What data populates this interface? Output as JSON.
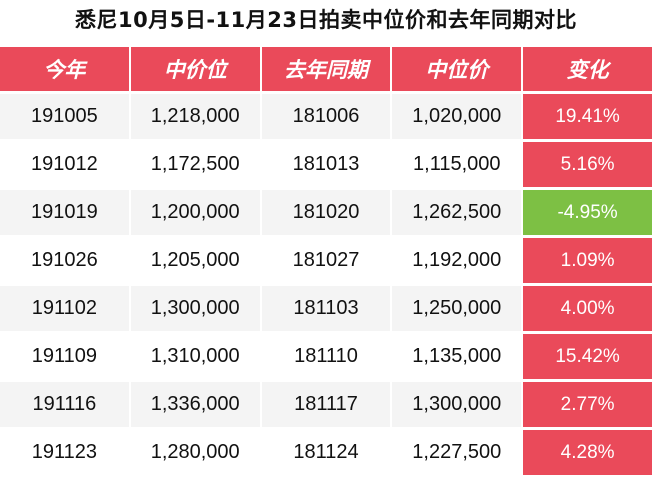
{
  "title": "悉尼10月5日-11月23日拍卖中位价和去年同期对比",
  "colors": {
    "header_bg": "#ea4a5a",
    "positive_change_bg": "#ea4a5a",
    "negative_change_bg": "#7dc044",
    "stripe_bg": "#f4f4f4"
  },
  "headers": {
    "this_year": "今年",
    "median": "中价位",
    "last_year": "去年同期",
    "last_median": "中位价",
    "change": "变化"
  },
  "rows": [
    {
      "this_year": "191005",
      "median": "1,218,000",
      "last_year": "181006",
      "last_median": "1,020,000",
      "change": "19.41%",
      "direction": "up"
    },
    {
      "this_year": "191012",
      "median": "1,172,500",
      "last_year": "181013",
      "last_median": "1,115,000",
      "change": "5.16%",
      "direction": "up"
    },
    {
      "this_year": "191019",
      "median": "1,200,000",
      "last_year": "181020",
      "last_median": "1,262,500",
      "change": "-4.95%",
      "direction": "down"
    },
    {
      "this_year": "191026",
      "median": "1,205,000",
      "last_year": "181027",
      "last_median": "1,192,000",
      "change": "1.09%",
      "direction": "up"
    },
    {
      "this_year": "191102",
      "median": "1,300,000",
      "last_year": "181103",
      "last_median": "1,250,000",
      "change": "4.00%",
      "direction": "up"
    },
    {
      "this_year": "191109",
      "median": "1,310,000",
      "last_year": "181110",
      "last_median": "1,135,000",
      "change": "15.42%",
      "direction": "up"
    },
    {
      "this_year": "191116",
      "median": "1,336,000",
      "last_year": "181117",
      "last_median": "1,300,000",
      "change": "2.77%",
      "direction": "up"
    },
    {
      "this_year": "191123",
      "median": "1,280,000",
      "last_year": "181124",
      "last_median": "1,227,500",
      "change": "4.28%",
      "direction": "up"
    }
  ]
}
